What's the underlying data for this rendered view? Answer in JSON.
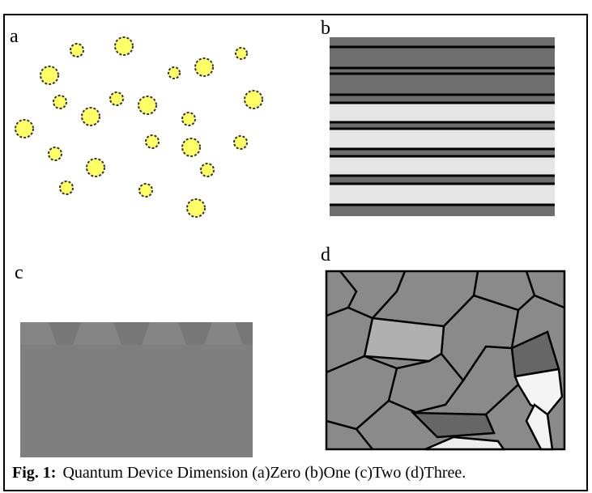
{
  "panels": [
    {
      "label": "a"
    },
    {
      "label": "b"
    },
    {
      "label": "c"
    },
    {
      "label": "d"
    }
  ],
  "caption": {
    "prefix": "Fig. 1:",
    "text": "Quantum Device Dimension (a)Zero (b)One (c)Two (d)Three."
  }
}
